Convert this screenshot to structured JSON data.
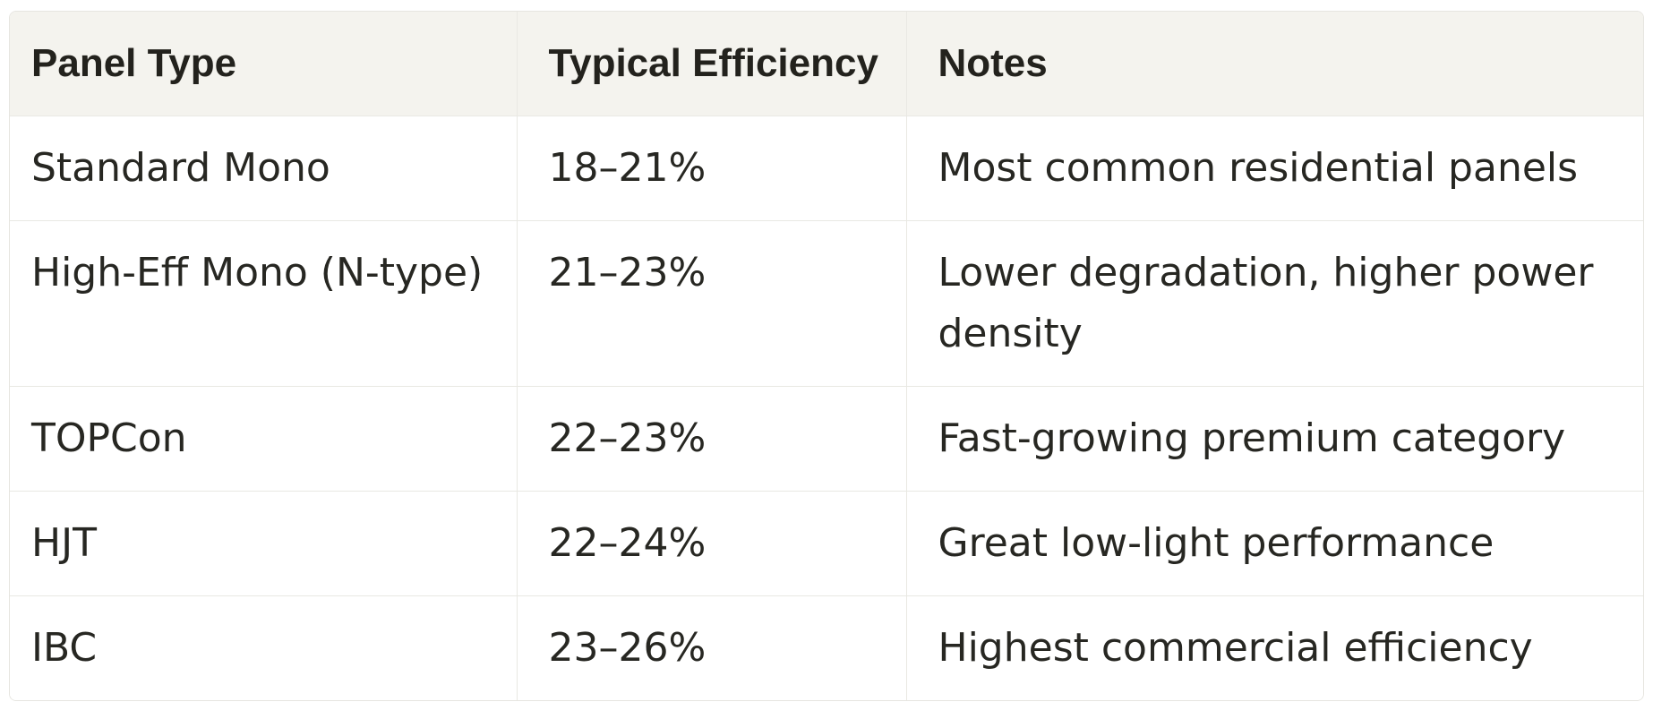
{
  "table": {
    "columns": [
      {
        "label": "Panel Type"
      },
      {
        "label": "Typical Efficiency"
      },
      {
        "label": "Notes"
      }
    ],
    "rows": [
      {
        "panel_type": "Standard Mono",
        "efficiency": "18–21%",
        "notes": "Most common residential panels"
      },
      {
        "panel_type": "High-Eff Mono (N-type)",
        "efficiency": "21–23%",
        "notes": "Lower degradation, higher power density"
      },
      {
        "panel_type": "TOPCon",
        "efficiency": "22–23%",
        "notes": "Fast-growing premium category"
      },
      {
        "panel_type": "HJT",
        "efficiency": "22–24%",
        "notes": "Great low-light performance"
      },
      {
        "panel_type": "IBC",
        "efficiency": "23–26%",
        "notes": "Highest commercial efficiency"
      }
    ],
    "colors": {
      "header_bg": "#f4f3ee",
      "body_bg": "#ffffff",
      "grid_border": "#e9e8e3",
      "text": "#272722"
    }
  }
}
